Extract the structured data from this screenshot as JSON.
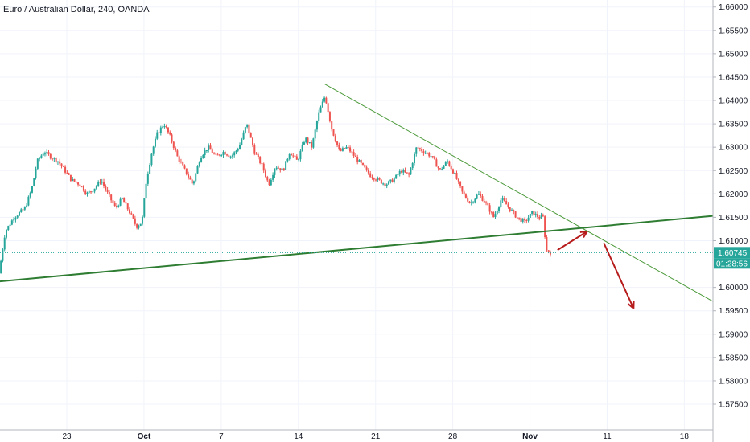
{
  "chart_data": {
    "type": "candlestick",
    "title": "Euro / Australian Dollar, 240, OANDA",
    "ylim": [
      1.5695,
      1.6615
    ],
    "y_ticks": [
      "1.66000",
      "1.65500",
      "1.65000",
      "1.64500",
      "1.64000",
      "1.63500",
      "1.63000",
      "1.62500",
      "1.62000",
      "1.61500",
      "1.61000",
      "1.60500",
      "1.60000",
      "1.59500",
      "1.59000",
      "1.58500",
      "1.58000",
      "1.57500"
    ],
    "x_ticks": [
      {
        "label": "23",
        "day": 23,
        "bold": false
      },
      {
        "label": "Oct",
        "day": 30,
        "bold": true
      },
      {
        "label": "7",
        "day": 37,
        "bold": false
      },
      {
        "label": "14",
        "day": 44,
        "bold": false
      },
      {
        "label": "21",
        "day": 51,
        "bold": false
      },
      {
        "label": "28",
        "day": 58,
        "bold": false
      },
      {
        "label": "Nov",
        "day": 65,
        "bold": true
      },
      {
        "label": "11",
        "day": 72,
        "bold": false
      },
      {
        "label": "18",
        "day": 79,
        "bold": false
      }
    ],
    "x_range_days": [
      16.94,
      81.6
    ],
    "anchors": [
      [
        16.94,
        1.603
      ],
      [
        17.5,
        1.612
      ],
      [
        18.3,
        1.615
      ],
      [
        19.3,
        1.617
      ],
      [
        19.9,
        1.621
      ],
      [
        20.4,
        1.627
      ],
      [
        21.0,
        1.629
      ],
      [
        21.6,
        1.628
      ],
      [
        22.3,
        1.627
      ],
      [
        22.9,
        1.625
      ],
      [
        23.5,
        1.623
      ],
      [
        24.3,
        1.622
      ],
      [
        24.9,
        1.62
      ],
      [
        25.5,
        1.621
      ],
      [
        26.2,
        1.623
      ],
      [
        26.8,
        1.62
      ],
      [
        27.5,
        1.617
      ],
      [
        28.1,
        1.619
      ],
      [
        28.8,
        1.616
      ],
      [
        29.4,
        1.613
      ],
      [
        29.9,
        1.614
      ],
      [
        30.3,
        1.623
      ],
      [
        30.8,
        1.629
      ],
      [
        31.3,
        1.633
      ],
      [
        31.9,
        1.635
      ],
      [
        32.5,
        1.632
      ],
      [
        33.1,
        1.628
      ],
      [
        33.8,
        1.625
      ],
      [
        34.5,
        1.622
      ],
      [
        35.2,
        1.628
      ],
      [
        35.9,
        1.63
      ],
      [
        36.6,
        1.628
      ],
      [
        37.3,
        1.629
      ],
      [
        38.0,
        1.628
      ],
      [
        38.7,
        1.63
      ],
      [
        39.4,
        1.635
      ],
      [
        40.1,
        1.629
      ],
      [
        40.8,
        1.626
      ],
      [
        41.4,
        1.622
      ],
      [
        42.0,
        1.626
      ],
      [
        42.7,
        1.625
      ],
      [
        43.3,
        1.629
      ],
      [
        44.0,
        1.627
      ],
      [
        44.7,
        1.632
      ],
      [
        45.3,
        1.63
      ],
      [
        45.9,
        1.637
      ],
      [
        46.5,
        1.641
      ],
      [
        47.1,
        1.634
      ],
      [
        47.8,
        1.629
      ],
      [
        48.5,
        1.63
      ],
      [
        49.2,
        1.628
      ],
      [
        49.9,
        1.626
      ],
      [
        50.6,
        1.624
      ],
      [
        51.3,
        1.623
      ],
      [
        52.0,
        1.622
      ],
      [
        52.7,
        1.623
      ],
      [
        53.4,
        1.625
      ],
      [
        54.1,
        1.624
      ],
      [
        54.8,
        1.63
      ],
      [
        55.5,
        1.629
      ],
      [
        56.2,
        1.628
      ],
      [
        56.9,
        1.625
      ],
      [
        57.6,
        1.627
      ],
      [
        58.3,
        1.624
      ],
      [
        59.0,
        1.62
      ],
      [
        59.7,
        1.618
      ],
      [
        60.4,
        1.62
      ],
      [
        61.1,
        1.618
      ],
      [
        61.8,
        1.615
      ],
      [
        62.5,
        1.619
      ],
      [
        63.2,
        1.617
      ],
      [
        63.9,
        1.615
      ],
      [
        64.6,
        1.614
      ],
      [
        65.3,
        1.616
      ],
      [
        65.9,
        1.615
      ],
      [
        66.3,
        1.615
      ],
      [
        66.55,
        1.608
      ],
      [
        66.9,
        1.6075
      ]
    ],
    "last_price": "1.60745",
    "countdown": "01:28:56",
    "trendlines": [
      {
        "name": "descending-resistance",
        "from": [
          46.4,
          1.6435
        ],
        "to": [
          81.6,
          1.597
        ],
        "color": "#4c9a3a",
        "width": 1
      },
      {
        "name": "ascending-support",
        "from": [
          16.94,
          1.6013
        ],
        "to": [
          81.6,
          1.6153
        ],
        "color": "#2e7d32",
        "width": 2
      }
    ],
    "arrows": [
      {
        "name": "up-arrow",
        "from": [
          67.5,
          1.608
        ],
        "to": [
          70.2,
          1.612
        ],
        "color": "#b71c1c"
      },
      {
        "name": "down-arrow",
        "from": [
          71.7,
          1.6095
        ],
        "to": [
          74.4,
          1.5955
        ],
        "color": "#b71c1c"
      }
    ],
    "colors": {
      "up": "#26a69a",
      "down": "#ef5350",
      "grid": "#f0f3fa",
      "axis": "#b2b5be",
      "price_line": "#26a69a"
    }
  }
}
